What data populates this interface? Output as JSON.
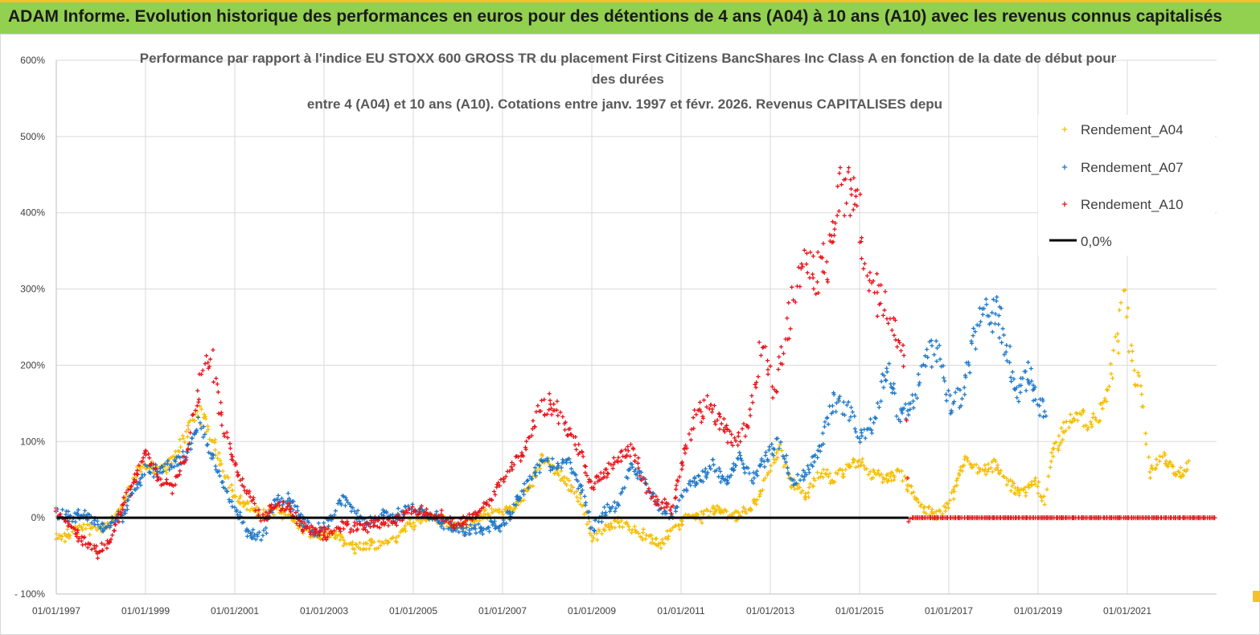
{
  "banner": {
    "title": "ADAM Informe. Evolution historique des performances en euros pour des détentions de 4 ans (A04) à 10 ans (A10) avec les revenus connus capitalisés"
  },
  "colors": {
    "banner_bg": "#92d050",
    "banner_border": "#f4c12e",
    "A04": "#f5be00",
    "A07": "#1f78c8",
    "A10": "#e8141b",
    "zero_line": "#000000",
    "grid": "#d9d9d9"
  },
  "chart_data": {
    "type": "scatter",
    "title_lines": [
      "Performance par rapport à l'indice EU STOXX 600 GROSS TR  du placement First Citizens BancShares Inc Class A en fonction de la date de début pour",
      "des durées",
      "entre 4 (A04) et 10 ans (A10). Cotations entre janv. 1997 et févr. 2026. Revenus CAPITALISES depu"
    ],
    "xlim": [
      1997.0,
      2023.0
    ],
    "ylim": [
      -100,
      600
    ],
    "y_ticks": [
      {
        "value": 600,
        "label": "600%"
      },
      {
        "value": 500,
        "label": "500%"
      },
      {
        "value": 400,
        "label": "400%"
      },
      {
        "value": 300,
        "label": "300%"
      },
      {
        "value": 200,
        "label": "200%"
      },
      {
        "value": 100,
        "label": "100%"
      },
      {
        "value": 0,
        "label": "0%"
      },
      {
        "value": -100,
        "label": "- 100%"
      }
    ],
    "x_ticks": [
      {
        "value": 1997,
        "label": "01/01/1997"
      },
      {
        "value": 1999,
        "label": "01/01/1999"
      },
      {
        "value": 2001,
        "label": "01/01/2001"
      },
      {
        "value": 2003,
        "label": "01/01/2003"
      },
      {
        "value": 2005,
        "label": "01/01/2005"
      },
      {
        "value": 2007,
        "label": "01/01/2007"
      },
      {
        "value": 2009,
        "label": "01/01/2009"
      },
      {
        "value": 2011,
        "label": "01/01/2011"
      },
      {
        "value": 2013,
        "label": "01/01/2013"
      },
      {
        "value": 2015,
        "label": "01/01/2015"
      },
      {
        "value": 2017,
        "label": "01/01/2017"
      },
      {
        "value": 2019,
        "label": "01/01/2019"
      },
      {
        "value": 2021,
        "label": "01/01/2021"
      }
    ],
    "legend_position": "right",
    "legend": [
      {
        "key": "A04",
        "label": "Rendement_A04",
        "marker": "+"
      },
      {
        "key": "A07",
        "label": "Rendement_A07",
        "marker": "+"
      },
      {
        "key": "A10",
        "label": "Rendement_A10",
        "marker": "+"
      },
      {
        "key": "zero",
        "label": "0,0%",
        "marker": "line"
      }
    ],
    "series": [
      {
        "name": "Rendement_A04",
        "key": "A04",
        "points": [
          [
            1997.0,
            -30
          ],
          [
            1997.3,
            -20
          ],
          [
            1997.6,
            -10
          ],
          [
            1997.9,
            -18
          ],
          [
            1998.2,
            -10
          ],
          [
            1998.5,
            20
          ],
          [
            1998.8,
            60
          ],
          [
            1999.0,
            70
          ],
          [
            1999.3,
            60
          ],
          [
            1999.6,
            75
          ],
          [
            1999.9,
            110
          ],
          [
            2000.2,
            140
          ],
          [
            2000.45,
            110
          ],
          [
            2000.7,
            70
          ],
          [
            2001.0,
            30
          ],
          [
            2001.3,
            15
          ],
          [
            2001.6,
            5
          ],
          [
            2001.9,
            10
          ],
          [
            2002.2,
            5
          ],
          [
            2002.5,
            -15
          ],
          [
            2002.8,
            -25
          ],
          [
            2003.1,
            -20
          ],
          [
            2003.4,
            -30
          ],
          [
            2003.7,
            -40
          ],
          [
            2004.0,
            -35
          ],
          [
            2004.3,
            -35
          ],
          [
            2004.6,
            -25
          ],
          [
            2004.9,
            -10
          ],
          [
            2005.2,
            0
          ],
          [
            2005.5,
            0
          ],
          [
            2005.8,
            -10
          ],
          [
            2006.1,
            -10
          ],
          [
            2006.4,
            -5
          ],
          [
            2006.7,
            5
          ],
          [
            2007.0,
            10
          ],
          [
            2007.3,
            15
          ],
          [
            2007.6,
            40
          ],
          [
            2007.9,
            80
          ],
          [
            2008.2,
            60
          ],
          [
            2008.5,
            40
          ],
          [
            2008.8,
            20
          ],
          [
            2009.0,
            -25
          ],
          [
            2009.3,
            -15
          ],
          [
            2009.6,
            -5
          ],
          [
            2009.9,
            -15
          ],
          [
            2010.2,
            -25
          ],
          [
            2010.5,
            -35
          ],
          [
            2010.8,
            -20
          ],
          [
            2011.1,
            0
          ],
          [
            2011.4,
            0
          ],
          [
            2011.7,
            10
          ],
          [
            2012.0,
            5
          ],
          [
            2012.3,
            5
          ],
          [
            2012.6,
            15
          ],
          [
            2012.9,
            50
          ],
          [
            2013.2,
            90
          ],
          [
            2013.5,
            40
          ],
          [
            2013.8,
            30
          ],
          [
            2014.1,
            60
          ],
          [
            2014.4,
            50
          ],
          [
            2014.7,
            65
          ],
          [
            2015.0,
            75
          ],
          [
            2015.3,
            55
          ],
          [
            2015.6,
            50
          ],
          [
            2015.9,
            60
          ],
          [
            2016.2,
            30
          ],
          [
            2016.5,
            10
          ],
          [
            2016.8,
            5
          ],
          [
            2017.0,
            20
          ],
          [
            2017.2,
            50
          ],
          [
            2017.4,
            80
          ],
          [
            2017.7,
            60
          ],
          [
            2018.0,
            70
          ],
          [
            2018.3,
            50
          ],
          [
            2018.6,
            30
          ],
          [
            2018.9,
            50
          ],
          [
            2019.0,
            40
          ],
          [
            2019.15,
            20
          ],
          [
            2019.3,
            80
          ],
          [
            2019.6,
            120
          ],
          [
            2019.9,
            140
          ],
          [
            2020.2,
            120
          ],
          [
            2020.5,
            150
          ],
          [
            2020.8,
            240
          ],
          [
            2020.95,
            290
          ],
          [
            2021.1,
            200
          ],
          [
            2021.3,
            170
          ],
          [
            2021.5,
            60
          ],
          [
            2021.8,
            80
          ],
          [
            2022.1,
            55
          ],
          [
            2022.4,
            70
          ]
        ]
      },
      {
        "name": "Rendement_A07",
        "key": "A07",
        "points": [
          [
            1997.0,
            5
          ],
          [
            1997.3,
            0
          ],
          [
            1997.6,
            5
          ],
          [
            1997.9,
            -10
          ],
          [
            1998.2,
            -10
          ],
          [
            1998.5,
            5
          ],
          [
            1998.8,
            40
          ],
          [
            1999.0,
            65
          ],
          [
            1999.3,
            60
          ],
          [
            1999.6,
            70
          ],
          [
            1999.9,
            80
          ],
          [
            2000.2,
            125
          ],
          [
            2000.45,
            90
          ],
          [
            2000.7,
            50
          ],
          [
            2001.0,
            10
          ],
          [
            2001.3,
            -20
          ],
          [
            2001.6,
            -25
          ],
          [
            2001.9,
            20
          ],
          [
            2002.2,
            25
          ],
          [
            2002.5,
            0
          ],
          [
            2002.8,
            -20
          ],
          [
            2003.1,
            -5
          ],
          [
            2003.4,
            25
          ],
          [
            2003.7,
            5
          ],
          [
            2004.0,
            -5
          ],
          [
            2004.3,
            5
          ],
          [
            2004.6,
            0
          ],
          [
            2004.9,
            15
          ],
          [
            2005.2,
            5
          ],
          [
            2005.5,
            0
          ],
          [
            2005.8,
            -10
          ],
          [
            2006.1,
            -20
          ],
          [
            2006.4,
            -15
          ],
          [
            2006.7,
            -10
          ],
          [
            2007.0,
            -10
          ],
          [
            2007.3,
            20
          ],
          [
            2007.6,
            50
          ],
          [
            2007.9,
            75
          ],
          [
            2008.2,
            65
          ],
          [
            2008.5,
            75
          ],
          [
            2008.8,
            30
          ],
          [
            2009.0,
            -15
          ],
          [
            2009.3,
            10
          ],
          [
            2009.6,
            20
          ],
          [
            2009.9,
            70
          ],
          [
            2010.2,
            45
          ],
          [
            2010.5,
            15
          ],
          [
            2010.8,
            0
          ],
          [
            2011.1,
            40
          ],
          [
            2011.4,
            50
          ],
          [
            2011.7,
            70
          ],
          [
            2012.0,
            45
          ],
          [
            2012.3,
            80
          ],
          [
            2012.6,
            50
          ],
          [
            2012.9,
            80
          ],
          [
            2013.2,
            100
          ],
          [
            2013.5,
            45
          ],
          [
            2013.8,
            60
          ],
          [
            2014.1,
            90
          ],
          [
            2014.4,
            155
          ],
          [
            2014.7,
            145
          ],
          [
            2015.0,
            110
          ],
          [
            2015.3,
            120
          ],
          [
            2015.6,
            200
          ],
          [
            2015.9,
            130
          ],
          [
            2016.2,
            150
          ],
          [
            2016.5,
            220
          ],
          [
            2016.8,
            210
          ],
          [
            2017.0,
            150
          ],
          [
            2017.3,
            160
          ],
          [
            2017.6,
            240
          ],
          [
            2017.9,
            280
          ],
          [
            2018.2,
            250
          ],
          [
            2018.5,
            160
          ],
          [
            2018.8,
            190
          ],
          [
            2019.0,
            150
          ],
          [
            2019.2,
            140
          ]
        ]
      },
      {
        "name": "Rendement_A10",
        "key": "A10",
        "points": [
          [
            1997.0,
            5
          ],
          [
            1997.3,
            -10
          ],
          [
            1997.6,
            -30
          ],
          [
            1997.9,
            -45
          ],
          [
            1998.2,
            -30
          ],
          [
            1998.5,
            20
          ],
          [
            1998.8,
            55
          ],
          [
            1999.0,
            85
          ],
          [
            1999.3,
            50
          ],
          [
            1999.6,
            40
          ],
          [
            1999.9,
            80
          ],
          [
            2000.2,
            170
          ],
          [
            2000.45,
            220
          ],
          [
            2000.7,
            130
          ],
          [
            2001.0,
            70
          ],
          [
            2001.3,
            30
          ],
          [
            2001.6,
            0
          ],
          [
            2001.9,
            15
          ],
          [
            2002.2,
            15
          ],
          [
            2002.5,
            -10
          ],
          [
            2002.8,
            -20
          ],
          [
            2003.1,
            -20
          ],
          [
            2003.4,
            -10
          ],
          [
            2003.7,
            -15
          ],
          [
            2004.0,
            -10
          ],
          [
            2004.3,
            -5
          ],
          [
            2004.6,
            -5
          ],
          [
            2004.9,
            10
          ],
          [
            2005.2,
            10
          ],
          [
            2005.5,
            5
          ],
          [
            2005.8,
            -5
          ],
          [
            2006.1,
            -5
          ],
          [
            2006.4,
            5
          ],
          [
            2006.7,
            20
          ],
          [
            2006.9,
            40
          ],
          [
            2007.2,
            70
          ],
          [
            2007.5,
            85
          ],
          [
            2007.8,
            140
          ],
          [
            2008.1,
            150
          ],
          [
            2008.4,
            120
          ],
          [
            2008.7,
            90
          ],
          [
            2009.0,
            40
          ],
          [
            2009.3,
            60
          ],
          [
            2009.6,
            80
          ],
          [
            2009.9,
            90
          ],
          [
            2010.2,
            40
          ],
          [
            2010.5,
            20
          ],
          [
            2010.8,
            10
          ],
          [
            2011.0,
            70
          ],
          [
            2011.3,
            130
          ],
          [
            2011.6,
            150
          ],
          [
            2011.9,
            120
          ],
          [
            2012.2,
            100
          ],
          [
            2012.5,
            120
          ],
          [
            2012.8,
            230
          ],
          [
            2013.1,
            160
          ],
          [
            2013.4,
            260
          ],
          [
            2013.7,
            330
          ],
          [
            2014.0,
            320
          ],
          [
            2014.3,
            340
          ],
          [
            2014.6,
            440
          ],
          [
            2014.9,
            420
          ],
          [
            2015.2,
            300
          ],
          [
            2015.5,
            290
          ],
          [
            2015.8,
            240
          ],
          [
            2016.0,
            220
          ],
          [
            2016.1,
            0
          ],
          [
            2023.0,
            0
          ]
        ]
      }
    ],
    "zero_line": {
      "label": "0,0%",
      "x_range": [
        1997.0,
        2016.1
      ],
      "value": 0
    }
  }
}
